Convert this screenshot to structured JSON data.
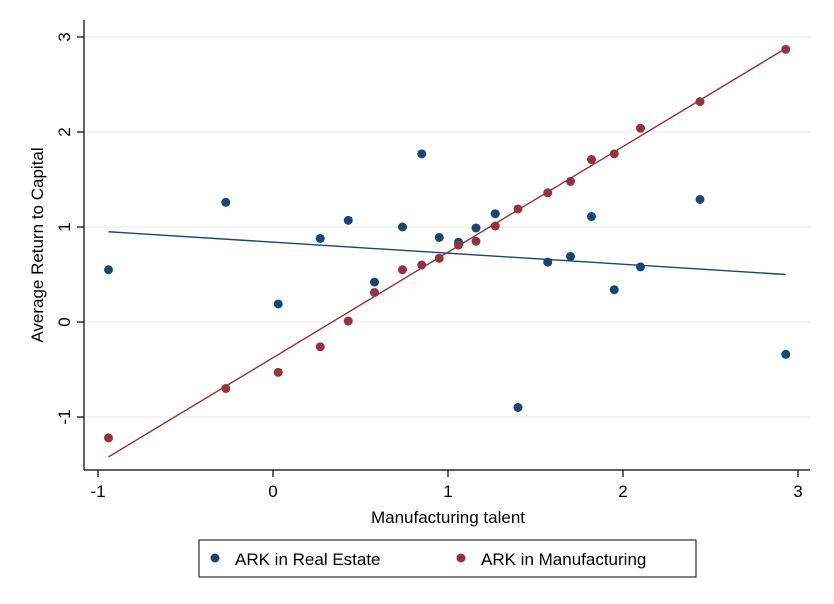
{
  "chart_data": {
    "type": "scatter",
    "title": "",
    "xlabel": "Manufacturing talent",
    "ylabel": "Average Return to Capital",
    "xlim": [
      -1.1,
      3.05
    ],
    "ylim": [
      -1.55,
      3.2
    ],
    "xticks": [
      -1,
      0,
      1,
      2,
      3
    ],
    "yticks": [
      -1,
      0,
      1,
      2,
      3
    ],
    "grid": "horizontal",
    "legend_position": "bottom",
    "series": [
      {
        "name": "ARK in Real Estate",
        "color": "#1a476f",
        "points": [
          {
            "x": -0.94,
            "y": 0.55
          },
          {
            "x": -0.27,
            "y": 1.26
          },
          {
            "x": 0.03,
            "y": 0.19
          },
          {
            "x": 0.27,
            "y": 0.88
          },
          {
            "x": 0.43,
            "y": 1.07
          },
          {
            "x": 0.58,
            "y": 0.42
          },
          {
            "x": 0.74,
            "y": 1.0
          },
          {
            "x": 0.85,
            "y": 1.77
          },
          {
            "x": 0.95,
            "y": 0.89
          },
          {
            "x": 1.06,
            "y": 0.84
          },
          {
            "x": 1.16,
            "y": 0.99
          },
          {
            "x": 1.27,
            "y": 1.14
          },
          {
            "x": 1.4,
            "y": -0.9
          },
          {
            "x": 1.57,
            "y": 0.63
          },
          {
            "x": 1.7,
            "y": 0.69
          },
          {
            "x": 1.82,
            "y": 1.11
          },
          {
            "x": 1.95,
            "y": 0.34
          },
          {
            "x": 2.1,
            "y": 0.58
          },
          {
            "x": 2.44,
            "y": 1.29
          },
          {
            "x": 2.93,
            "y": -0.34
          }
        ],
        "fit": [
          {
            "x": -0.94,
            "y": 0.95
          },
          {
            "x": 2.93,
            "y": 0.5
          }
        ]
      },
      {
        "name": "ARK in Manufacturing",
        "color": "#90353b",
        "points": [
          {
            "x": -0.94,
            "y": -1.22
          },
          {
            "x": -0.27,
            "y": -0.7
          },
          {
            "x": 0.03,
            "y": -0.53
          },
          {
            "x": 0.27,
            "y": -0.26
          },
          {
            "x": 0.43,
            "y": 0.01
          },
          {
            "x": 0.58,
            "y": 0.31
          },
          {
            "x": 0.74,
            "y": 0.55
          },
          {
            "x": 0.85,
            "y": 0.6
          },
          {
            "x": 0.95,
            "y": 0.67
          },
          {
            "x": 1.06,
            "y": 0.81
          },
          {
            "x": 1.16,
            "y": 0.85
          },
          {
            "x": 1.27,
            "y": 1.01
          },
          {
            "x": 1.4,
            "y": 1.19
          },
          {
            "x": 1.57,
            "y": 1.36
          },
          {
            "x": 1.7,
            "y": 1.48
          },
          {
            "x": 1.82,
            "y": 1.71
          },
          {
            "x": 1.95,
            "y": 1.77
          },
          {
            "x": 2.1,
            "y": 2.04
          },
          {
            "x": 2.44,
            "y": 2.32
          },
          {
            "x": 2.93,
            "y": 2.87
          }
        ],
        "fit": [
          {
            "x": -0.94,
            "y": -1.42
          },
          {
            "x": 2.93,
            "y": 2.88
          }
        ]
      }
    ]
  }
}
